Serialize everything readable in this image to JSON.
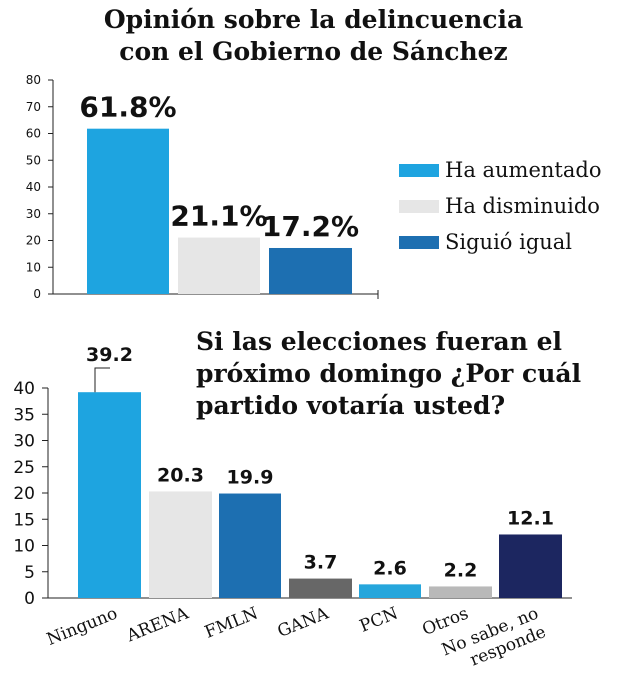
{
  "chart_data": [
    {
      "type": "bar",
      "title": "Opinión sobre la delincuencia con el Gobierno de Sánchez",
      "title_lines": [
        "Opinión sobre la delincuencia",
        "con el Gobierno de Sánchez"
      ],
      "categories": [
        "Ha aumentado",
        "Ha disminuido",
        "Siguió igual"
      ],
      "values": [
        61.8,
        21.1,
        17.2
      ],
      "data_labels": [
        "61.8%",
        "21.1%",
        "17.2%"
      ],
      "colors": [
        "#1ea4e0",
        "#e6e6e6",
        "#1d6fb1"
      ],
      "ylim": [
        0,
        80
      ],
      "yticks": [
        0,
        10,
        20,
        30,
        40,
        50,
        60,
        70,
        80
      ],
      "legend": [
        "Ha aumentado",
        "Ha disminuido",
        "Siguió igual"
      ],
      "legend_position": "right",
      "xlabel": "",
      "ylabel": "",
      "grid": false
    },
    {
      "type": "bar",
      "title": "Si las elecciones fueran el próximo domingo ¿Por cuál partido votaría usted?",
      "title_lines": [
        "Si las elecciones fueran el",
        "próximo domingo ¿Por cuál",
        "partido votaría usted?"
      ],
      "categories": [
        "Ninguno",
        "ARENA",
        "FMLN",
        "GANA",
        "PCN",
        "Otros",
        "No sabe, no responde"
      ],
      "category_label_lines": [
        [
          "Ninguno"
        ],
        [
          "ARENA"
        ],
        [
          "FMLN"
        ],
        [
          "GANA"
        ],
        [
          "PCN"
        ],
        [
          "Otros"
        ],
        [
          "No sabe, no",
          "responde"
        ]
      ],
      "values": [
        39.2,
        20.3,
        19.9,
        3.7,
        2.6,
        2.2,
        12.1
      ],
      "data_labels": [
        "39.2",
        "20.3",
        "19.9",
        "3.7",
        "2.6",
        "2.2",
        "12.1"
      ],
      "colors": [
        "#1ea4e0",
        "#e6e6e6",
        "#1d6fb1",
        "#676767",
        "#26a6dc",
        "#b9b9b9",
        "#1c2660"
      ],
      "ylim": [
        0,
        40
      ],
      "yticks": [
        0,
        5,
        10,
        15,
        20,
        25,
        30,
        35,
        40
      ],
      "xlabel": "",
      "ylabel": "",
      "grid": false
    }
  ]
}
